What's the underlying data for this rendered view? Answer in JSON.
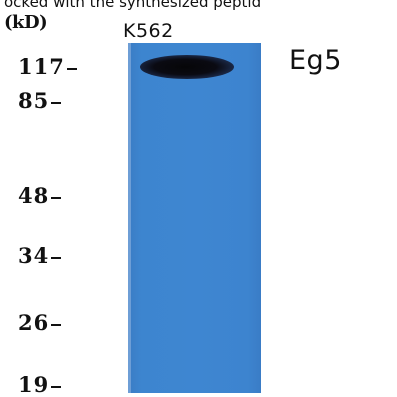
{
  "caption": "ocked with the synthesized peptid",
  "unit_label": "(kD)",
  "lane_label": "K562",
  "target_label": "Eg5",
  "markers": [
    {
      "label": "117"
    },
    {
      "label": "85"
    },
    {
      "label": "48"
    },
    {
      "label": "34"
    },
    {
      "label": "26"
    },
    {
      "label": "19"
    }
  ],
  "colors": {
    "membrane": "#3e86d1",
    "band": "#0a0a12",
    "text": "#111111"
  }
}
